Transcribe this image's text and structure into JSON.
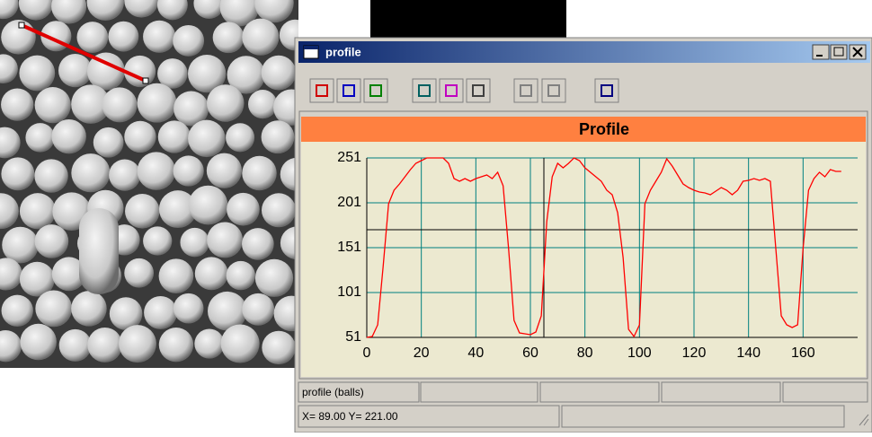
{
  "window": {
    "title": "profile"
  },
  "chart_data": {
    "type": "line",
    "title": "Profile",
    "x": [
      0,
      2,
      4,
      6,
      8,
      10,
      12,
      14,
      16,
      18,
      20,
      22,
      24,
      26,
      28,
      30,
      32,
      34,
      36,
      38,
      40,
      42,
      44,
      46,
      48,
      50,
      52,
      54,
      56,
      58,
      60,
      62,
      64,
      66,
      68,
      70,
      72,
      74,
      76,
      78,
      80,
      82,
      84,
      86,
      88,
      90,
      92,
      94,
      96,
      98,
      100,
      102,
      104,
      106,
      108,
      110,
      112,
      114,
      116,
      118,
      120,
      122,
      124,
      126,
      128,
      130,
      132,
      134,
      136,
      138,
      140,
      142,
      144,
      146,
      148,
      150,
      152,
      154,
      156,
      158,
      160,
      162,
      164,
      166,
      168,
      170,
      172,
      174
    ],
    "values": [
      51,
      52,
      65,
      130,
      200,
      215,
      222,
      230,
      238,
      245,
      248,
      251,
      251,
      251,
      251,
      245,
      228,
      225,
      228,
      225,
      228,
      230,
      232,
      228,
      235,
      220,
      150,
      70,
      56,
      55,
      54,
      57,
      75,
      180,
      230,
      245,
      240,
      245,
      251,
      248,
      240,
      235,
      230,
      225,
      215,
      210,
      190,
      140,
      60,
      52,
      65,
      200,
      215,
      225,
      235,
      250,
      242,
      232,
      222,
      218,
      215,
      213,
      212,
      210,
      214,
      218,
      215,
      210,
      215,
      225,
      226,
      228,
      226,
      228,
      225,
      150,
      75,
      65,
      62,
      65,
      150,
      215,
      228,
      235,
      230,
      238,
      236,
      236
    ],
    "color": "#ff0000",
    "xlim": [
      0,
      180
    ],
    "ylim": [
      51,
      251
    ],
    "xticks": [
      0,
      20,
      40,
      60,
      80,
      100,
      120,
      140,
      160
    ],
    "yticks": [
      51,
      101,
      151,
      201,
      251
    ],
    "grid": true
  },
  "status": [
    "profile (balls)",
    "X= 89.00 Y= 221.00"
  ]
}
